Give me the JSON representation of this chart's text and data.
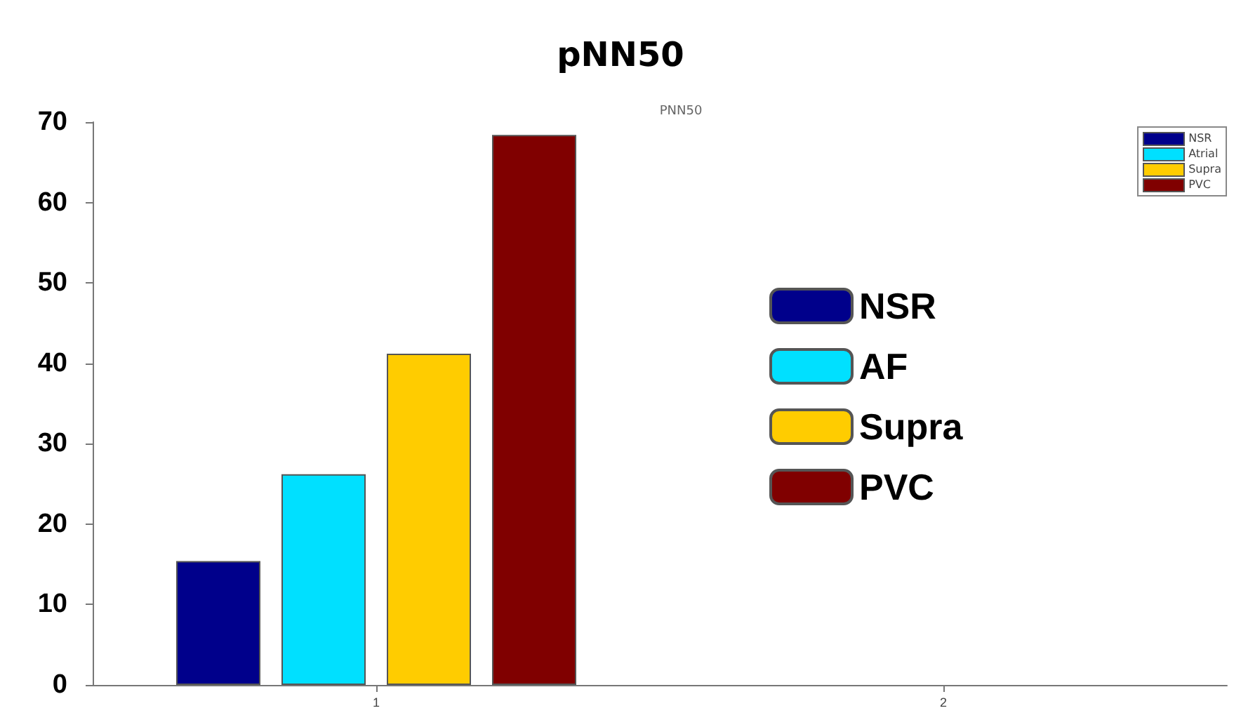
{
  "chart_data": {
    "type": "bar",
    "title": "pNN50",
    "subtitle": "PNN50",
    "categories": [
      "1",
      "2"
    ],
    "series": [
      {
        "name": "NSR",
        "color": "#00008b",
        "values": [
          15.4,
          null
        ]
      },
      {
        "name": "AF",
        "color": "#00e0ff",
        "values": [
          26.2,
          null
        ]
      },
      {
        "name": "Supra",
        "color": "#ffcc00",
        "values": [
          41.2,
          null
        ]
      },
      {
        "name": "PVC",
        "color": "#800000",
        "values": [
          68.4,
          null
        ]
      }
    ],
    "ylim": [
      0,
      70
    ],
    "yticks": [
      0,
      10,
      20,
      30,
      40,
      50,
      60,
      70
    ],
    "annotations": [
      "NSR",
      "Atrial",
      "Supra",
      "PVC"
    ],
    "legend": "right",
    "grid": false
  }
}
